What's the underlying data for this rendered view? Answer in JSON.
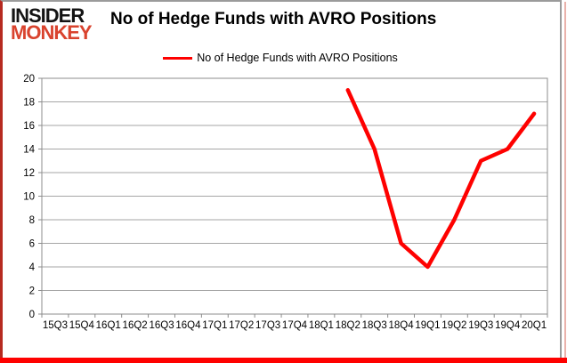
{
  "logo": {
    "line1": "INSIDER",
    "line2": "MONKEY"
  },
  "title": "No of Hedge Funds with AVRO Positions",
  "legend": {
    "label": "No of Hedge Funds with AVRO Positions",
    "color": "#fe0100"
  },
  "colors": {
    "line": "#fe0100",
    "grid": "#a6a6a6",
    "axis": "#8c8c8c",
    "logo_red": "#d9432e",
    "frame_left": "#b62a20",
    "frame_bottom": "#fe0100"
  },
  "chart_data": {
    "type": "line",
    "title": "No of Hedge Funds with AVRO Positions",
    "categories": [
      "15Q3",
      "15Q4",
      "16Q1",
      "16Q2",
      "16Q3",
      "16Q4",
      "17Q1",
      "17Q2",
      "17Q3",
      "17Q4",
      "18Q1",
      "18Q2",
      "18Q3",
      "18Q4",
      "19Q1",
      "19Q2",
      "19Q3",
      "19Q4",
      "20Q1"
    ],
    "series": [
      {
        "name": "No of Hedge Funds with AVRO Positions",
        "color": "#fe0100",
        "values": [
          null,
          null,
          null,
          null,
          null,
          null,
          null,
          null,
          null,
          null,
          null,
          19,
          14,
          6,
          4,
          8,
          13,
          14,
          17
        ]
      }
    ],
    "xlabel": "",
    "ylabel": "",
    "ylim": [
      0,
      20
    ],
    "ytick_step": 2,
    "grid": true,
    "legend_position": "top"
  }
}
